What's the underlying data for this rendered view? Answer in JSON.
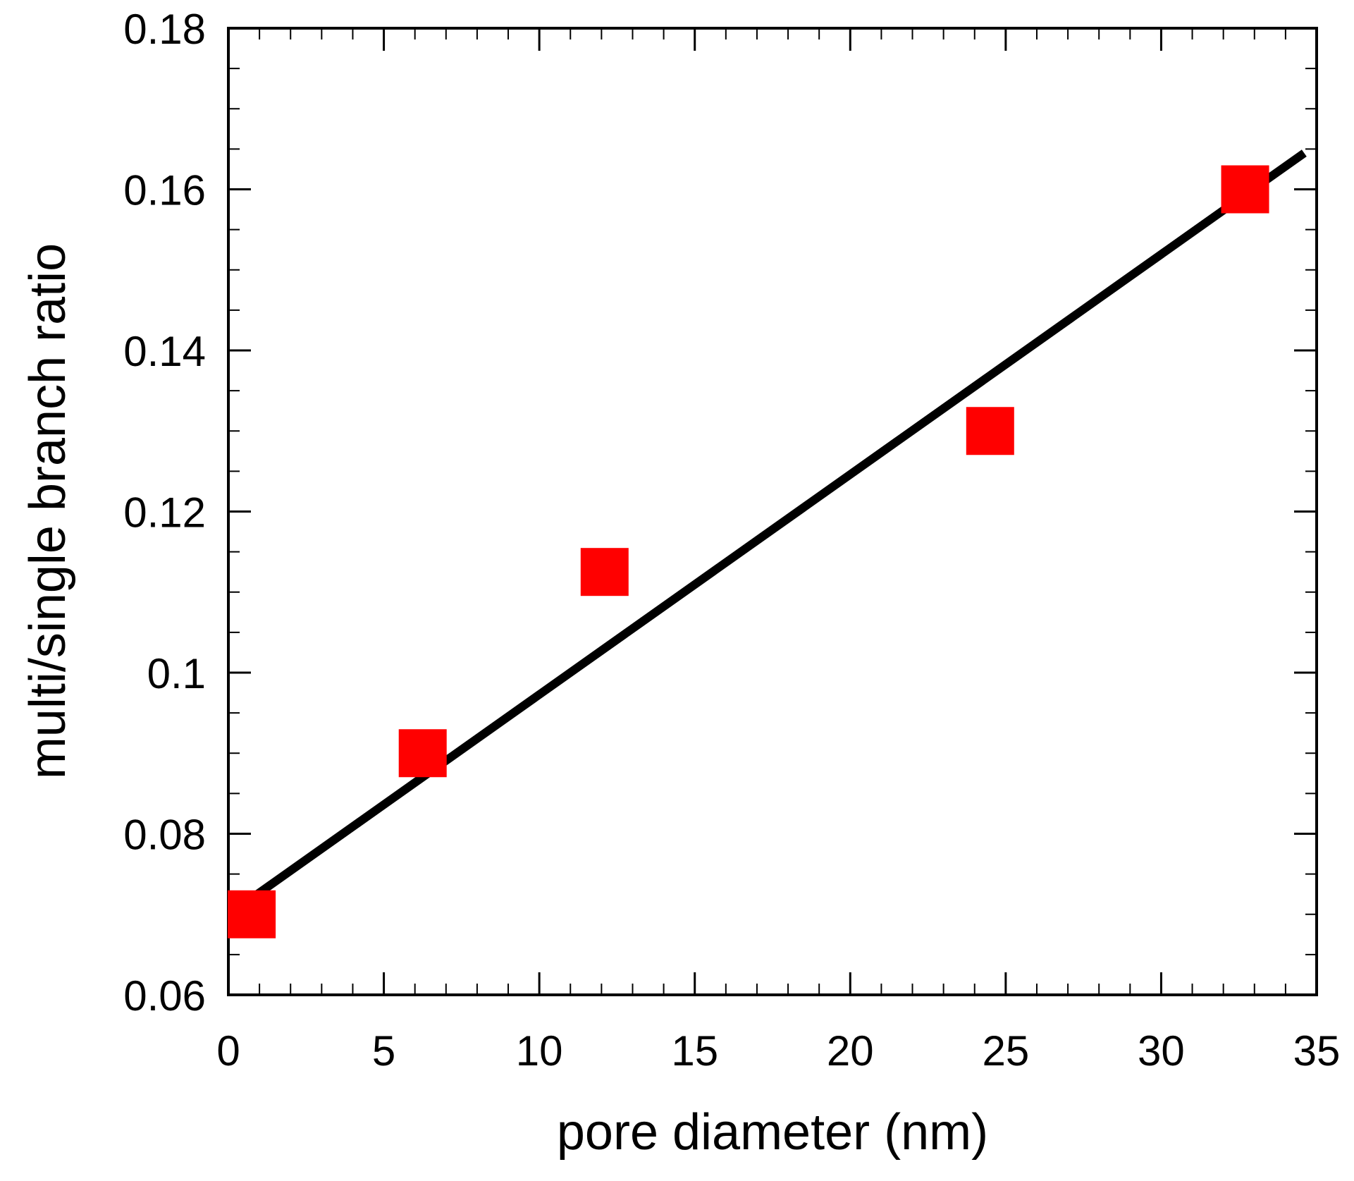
{
  "chart_data": {
    "type": "scatter",
    "title": "",
    "xlabel": "pore diameter (nm)",
    "ylabel": "multi/single branch ratio",
    "xlim": [
      0,
      35
    ],
    "ylim": [
      0.06,
      0.18
    ],
    "x_ticks": [
      "0",
      "5",
      "10",
      "15",
      "20",
      "25",
      "30",
      "35"
    ],
    "y_ticks": [
      "0.06",
      "0.08",
      "0.1",
      "0.12",
      "0.14",
      "0.16",
      "0.18"
    ],
    "grid": false,
    "legend": null,
    "series": [
      {
        "name": "data",
        "marker": "square",
        "color": "#ff0000",
        "x": [
          0.75,
          6.25,
          12.1,
          24.5,
          32.7
        ],
        "y": [
          0.07,
          0.09,
          0.1125,
          0.13,
          0.16
        ]
      },
      {
        "name": "linear fit",
        "type": "line",
        "color": "#000000",
        "x": [
          0.75,
          34.6
        ],
        "y": [
          0.072,
          0.1645
        ]
      }
    ]
  },
  "axes": {
    "x_title": "pore diameter (nm)",
    "y_title": "multi/single branch ratio"
  }
}
